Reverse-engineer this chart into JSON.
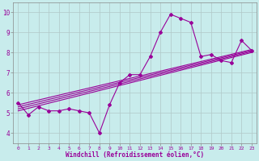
{
  "title": "",
  "xlabel": "Windchill (Refroidissement éolien,°C)",
  "ylabel": "",
  "background_color": "#c8ecec",
  "grid_color": "#b0c8c8",
  "line_color": "#990099",
  "xlim": [
    -0.5,
    23.5
  ],
  "ylim": [
    3.5,
    10.5
  ],
  "xticks": [
    0,
    1,
    2,
    3,
    4,
    5,
    6,
    7,
    8,
    9,
    10,
    11,
    12,
    13,
    14,
    15,
    16,
    17,
    18,
    19,
    20,
    21,
    22,
    23
  ],
  "yticks": [
    4,
    5,
    6,
    7,
    8,
    9,
    10
  ],
  "series_main": [
    5.5,
    4.9,
    5.3,
    5.1,
    5.1,
    5.2,
    5.1,
    5.0,
    4.0,
    5.4,
    6.5,
    6.9,
    6.9,
    7.8,
    9.0,
    9.9,
    9.7,
    9.5,
    7.8,
    7.9,
    7.6,
    7.5,
    8.6,
    8.1
  ],
  "regression_lines": [
    {
      "x0": 0,
      "y0": 5.1,
      "x1": 23,
      "y1": 8.0
    },
    {
      "x0": 0,
      "y0": 5.2,
      "x1": 23,
      "y1": 8.05
    },
    {
      "x0": 0,
      "y0": 5.3,
      "x1": 23,
      "y1": 8.1
    },
    {
      "x0": 0,
      "y0": 5.4,
      "x1": 23,
      "y1": 8.15
    }
  ],
  "marker": "D",
  "markersize": 2,
  "linewidth": 0.8
}
